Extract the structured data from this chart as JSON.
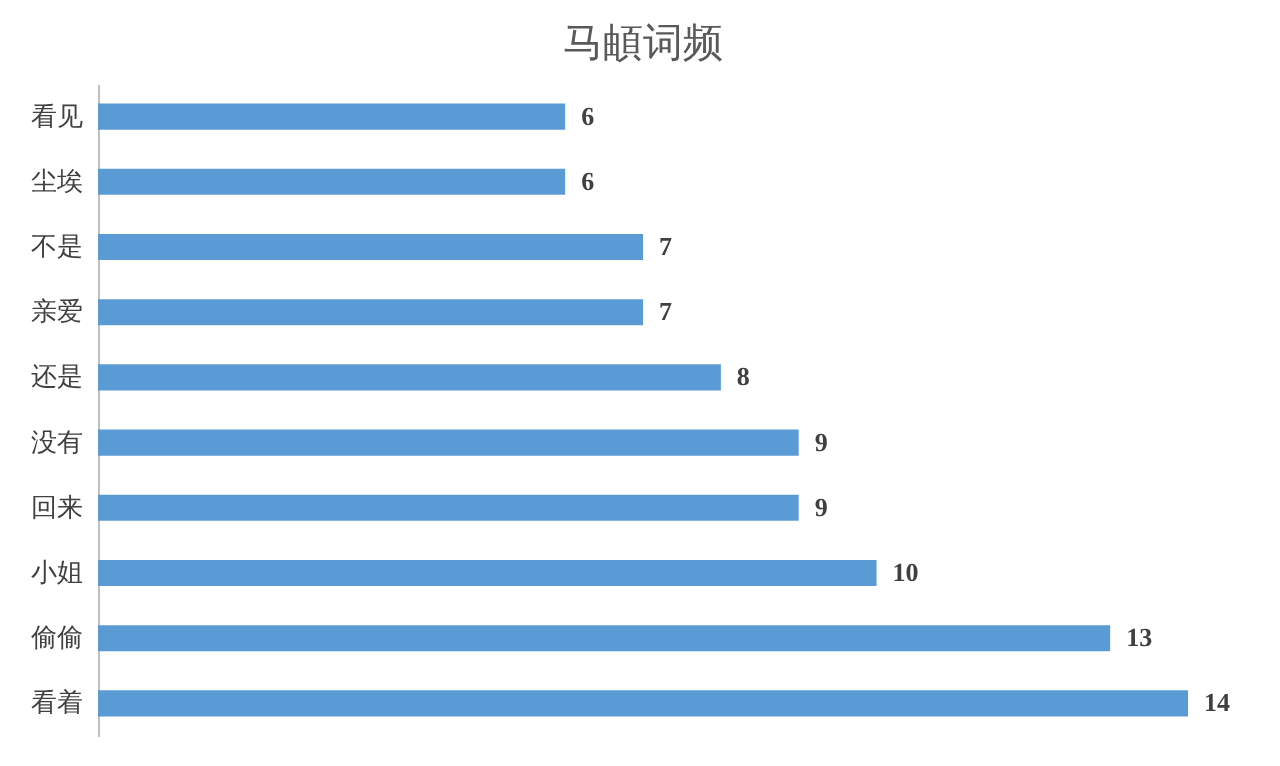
{
  "chart_data": {
    "type": "bar",
    "orientation": "horizontal",
    "title": "马頔词频",
    "categories": [
      "看见",
      "尘埃",
      "不是",
      "亲爱",
      "还是",
      "没有",
      "回来",
      "小姐",
      "偷偷",
      "看着"
    ],
    "values": [
      6,
      6,
      7,
      7,
      8,
      9,
      9,
      10,
      13,
      14
    ],
    "color": "#5b9bd5",
    "data_labels": true,
    "tick_labels": "y"
  }
}
